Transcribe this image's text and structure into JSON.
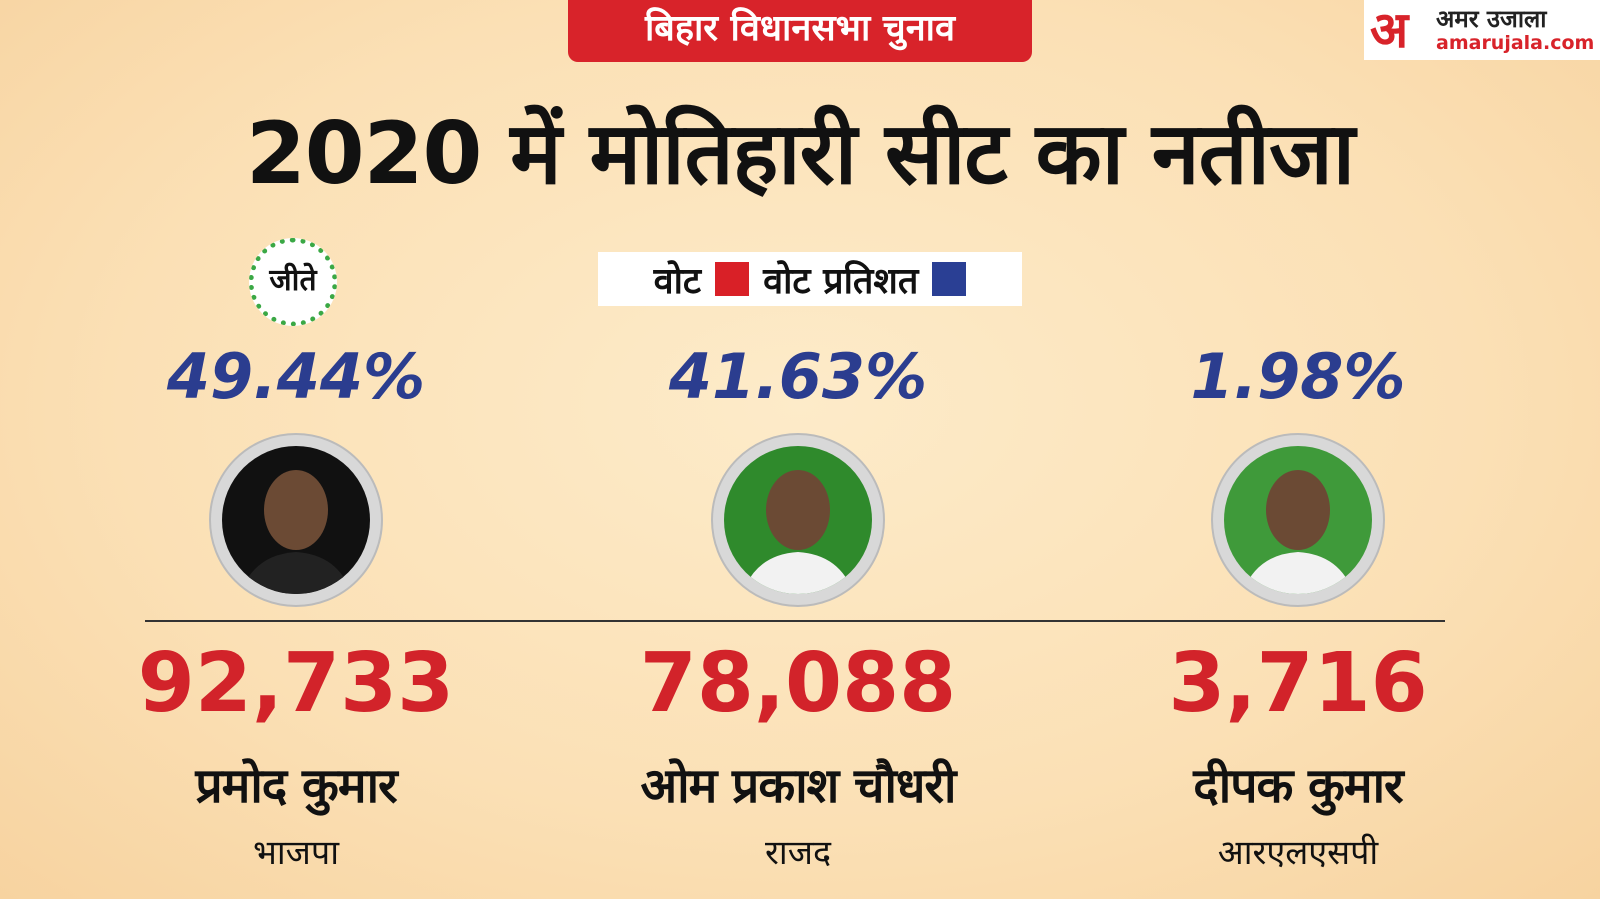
{
  "header": {
    "tag": "बिहार विधानसभा चुनाव",
    "logo_letter": "अ",
    "logo_name": "अमर उजाला",
    "logo_site": "amarujala.com"
  },
  "title": "2020 में मोतिहारी सीट का नतीजा",
  "legend": {
    "votes": "वोट",
    "percent": "वोट प्रतिशत"
  },
  "winner_badge": "जीते",
  "candidates": [
    {
      "percent": "49.44%",
      "votes": "92,733",
      "name": "प्रमोद कुमार",
      "party": "भाजपा"
    },
    {
      "percent": "41.63%",
      "votes": "78,088",
      "name": "ओम प्रकाश चौधरी",
      "party": "राजद"
    },
    {
      "percent": "1.98%",
      "votes": "3,716",
      "name": "दीपक कुमार",
      "party": "आरएलएसपी"
    }
  ]
}
